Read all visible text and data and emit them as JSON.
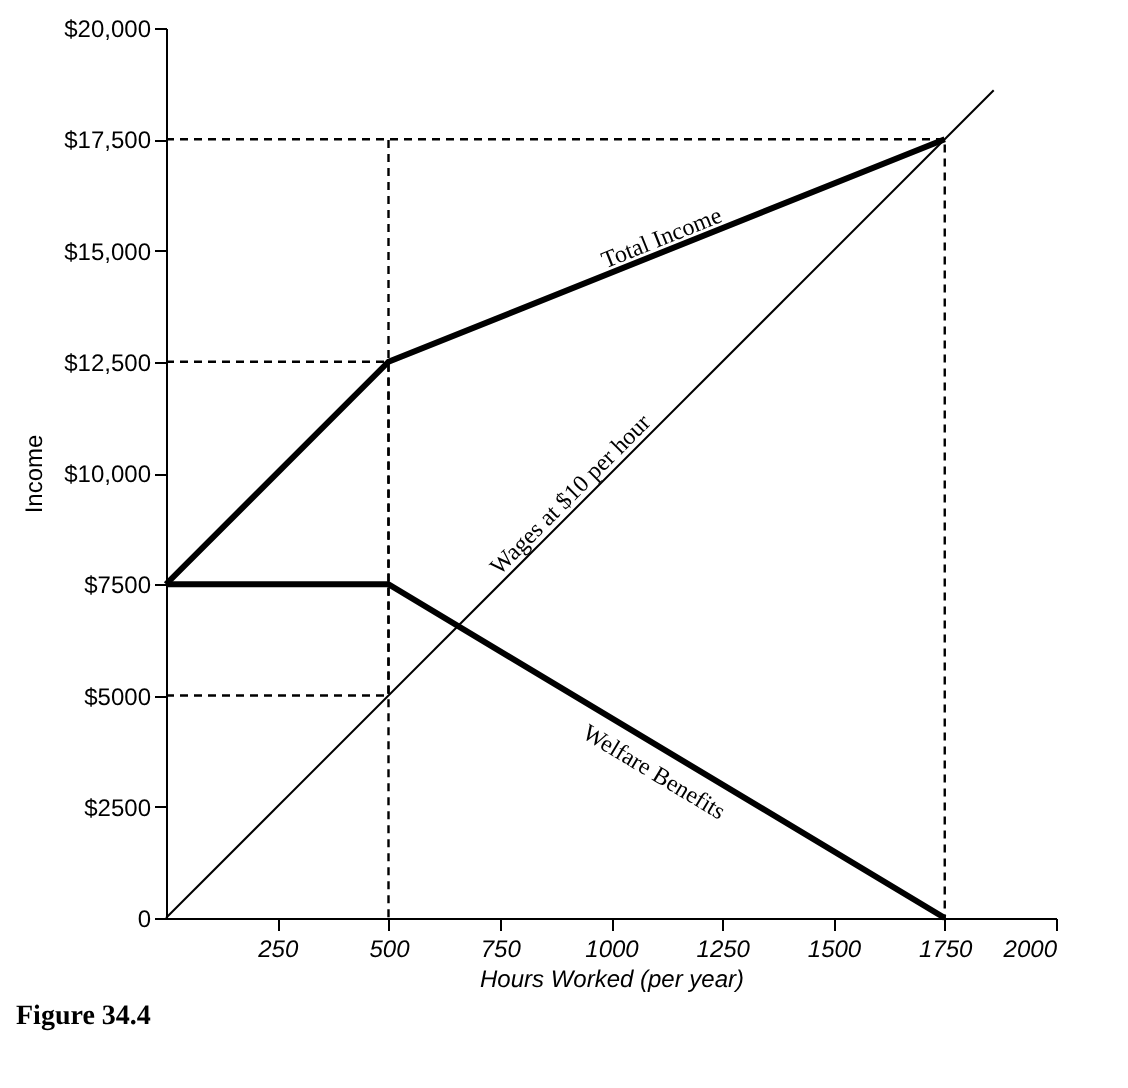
{
  "chart_data": {
    "type": "line",
    "xlabel": "Hours Worked (per year)",
    "ylabel": "Income",
    "xlim": [
      0,
      2000
    ],
    "xticks": [
      250,
      500,
      750,
      1000,
      1250,
      1500,
      1750,
      2000
    ],
    "ylim": [
      0,
      20000
    ],
    "yticks": [
      {
        "value": 0,
        "label": "0"
      },
      {
        "value": 2500,
        "label": "$2500"
      },
      {
        "value": 5000,
        "label": "$5000"
      },
      {
        "value": 7500,
        "label": "$7500"
      },
      {
        "value": 10000,
        "label": "$10,000"
      },
      {
        "value": 12500,
        "label": "$12,500"
      },
      {
        "value": 15000,
        "label": "$15,000"
      },
      {
        "value": 17500,
        "label": "$17,500"
      },
      {
        "value": 20000,
        "label": "$20,000"
      }
    ],
    "grid": false,
    "series": [
      {
        "name": "Total Income",
        "color": "#000000",
        "x": [
          0,
          500,
          1750
        ],
        "values": [
          7500,
          12500,
          17500
        ]
      },
      {
        "name": "Wages at $10 per hour",
        "color": "#000000",
        "x": [
          0,
          1860
        ],
        "values": [
          0,
          18600
        ]
      },
      {
        "name": "Welfare Benefits",
        "color": "#000000",
        "x": [
          0,
          500,
          1750
        ],
        "values": [
          7500,
          7500,
          0
        ]
      },
      {
        "color": "#000000",
        "line_style": "dashed",
        "x": [
          0,
          1750,
          1750
        ],
        "values": [
          17500,
          17500,
          0
        ]
      },
      {
        "color": "#000000",
        "line_style": "dashed",
        "x": [
          0,
          500,
          500
        ],
        "values": [
          12500,
          12500,
          0
        ]
      },
      {
        "color": "#000000",
        "line_style": "dashed",
        "x": [
          0,
          500,
          500
        ],
        "values": [
          5000,
          5000,
          17500
        ]
      }
    ],
    "annotations": [
      "Figure 34.4"
    ]
  }
}
